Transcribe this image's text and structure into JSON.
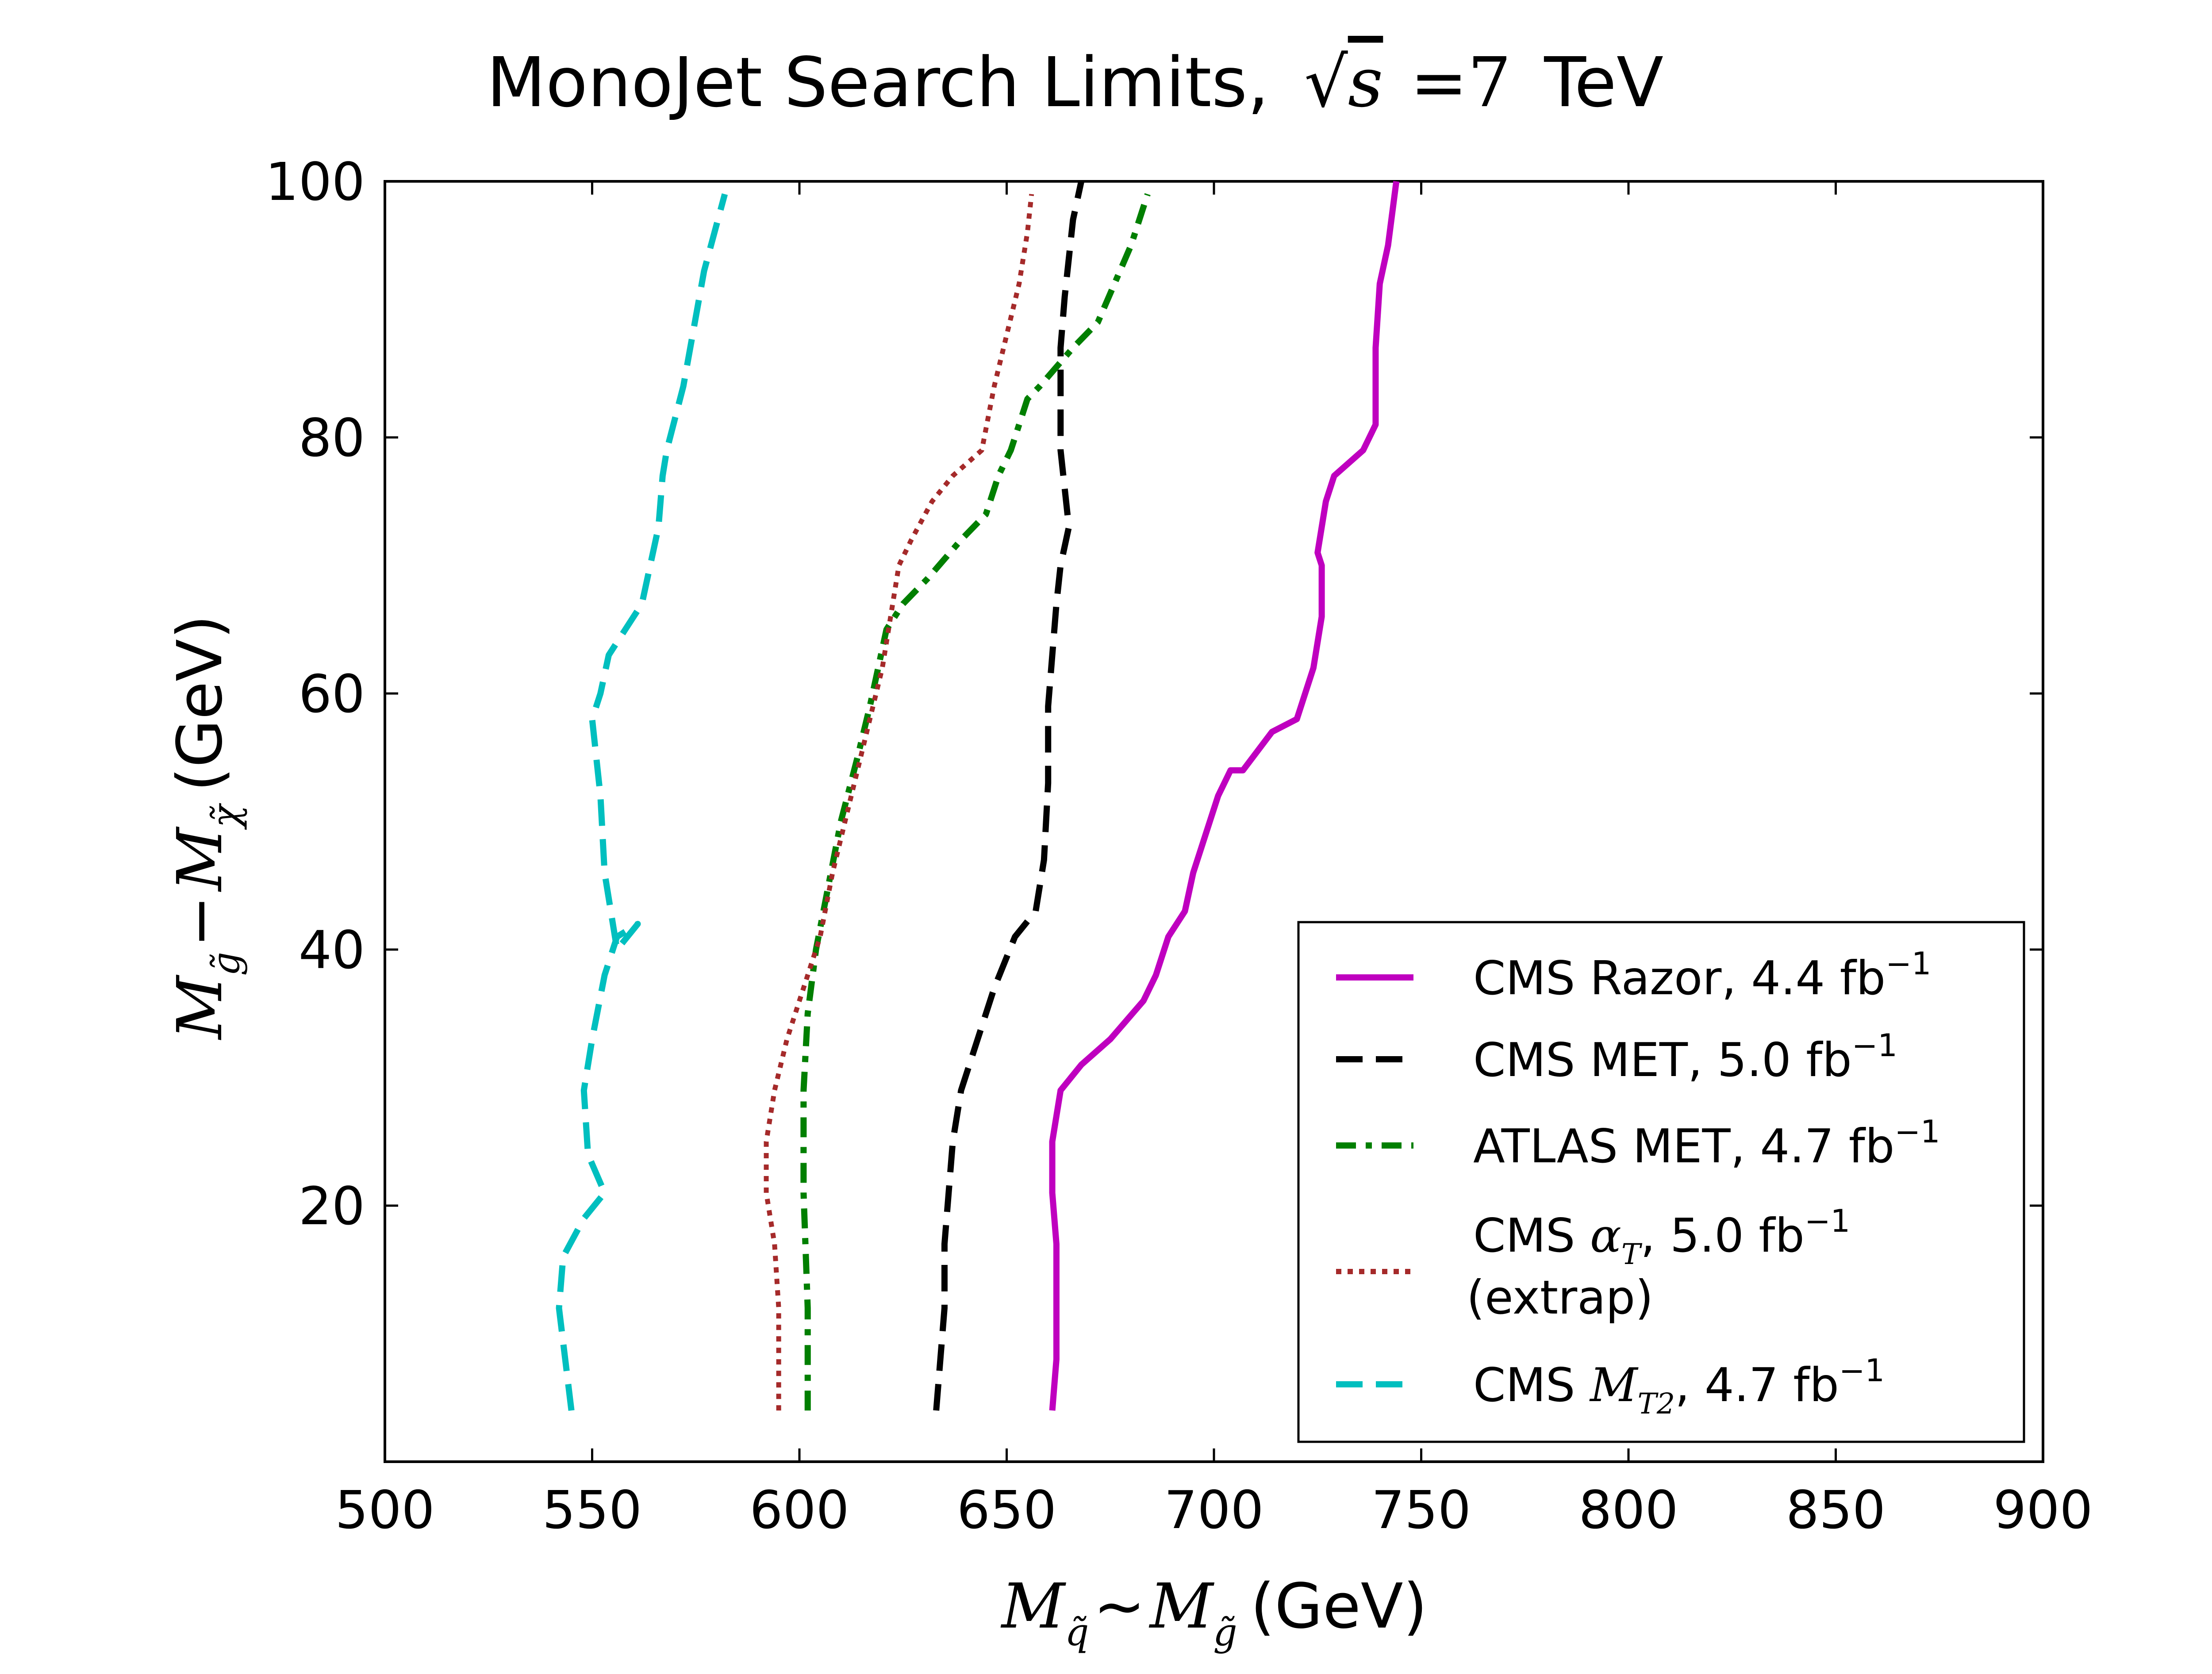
{
  "chart_data": {
    "type": "line",
    "title": "MonoJet Search Limits, √s = 7 TeV",
    "title_parts": {
      "prefix": "MonoJet Search Limits,",
      "sqrt_var": "s",
      "eq": "=",
      "energy": "7",
      "unit": "TeV"
    },
    "xlabel": "M_q̃ ~ M_g̃ (GeV)",
    "ylabel": "M_g̃ − M_χ̃ (GeV)",
    "xlabel_parts": {
      "m1": "M",
      "s1": "q̃",
      "op": "∼",
      "m2": "M",
      "s2": "g̃",
      "unit": "(GeV)"
    },
    "ylabel_parts": {
      "m1": "M",
      "s1": "g̃",
      "op": "−",
      "m2": "M",
      "s2": "χ̃",
      "unit": "(GeV)"
    },
    "xlim": [
      500,
      900
    ],
    "ylim": [
      0,
      100
    ],
    "xticks": [
      500,
      550,
      600,
      650,
      700,
      750,
      800,
      850,
      900
    ],
    "yticks": [
      20,
      40,
      60,
      80,
      100
    ],
    "legend_position": "lower-right",
    "series": [
      {
        "name": "CMS Razor, 4.4 fb⁻¹",
        "color": "#bf00bf",
        "style": "solid",
        "x": [
          661,
          662,
          662,
          661,
          661,
          663,
          668,
          675,
          683,
          686,
          689,
          693,
          695,
          698,
          701,
          704,
          707,
          714,
          720,
          724,
          726,
          726,
          725,
          727,
          729,
          736,
          739,
          739,
          739,
          740,
          742,
          744
        ],
        "y": [
          4,
          8,
          17,
          21,
          25,
          29,
          31,
          33,
          36,
          38,
          41,
          43,
          46,
          49,
          52,
          54,
          54,
          57,
          58,
          62,
          66,
          70,
          71,
          75,
          77,
          79,
          81,
          83,
          87,
          92,
          95,
          100
        ]
      },
      {
        "name": "CMS MET, 5.0 fb⁻¹",
        "color": "#000000",
        "style": "dashed",
        "x": [
          633,
          635,
          635,
          636,
          637,
          639,
          643,
          647,
          652,
          657,
          659,
          660,
          660,
          661,
          662,
          663,
          665,
          664,
          663,
          663,
          663,
          664,
          665,
          666,
          668
        ],
        "y": [
          4,
          12,
          17,
          21,
          25,
          29,
          33,
          37,
          41,
          43,
          47,
          53,
          59,
          63,
          67,
          70,
          73,
          76,
          79,
          83,
          87,
          91,
          94,
          97,
          100
        ]
      },
      {
        "name": "ATLAS MET, 4.7 fb⁻¹",
        "color": "#007f00",
        "style": "dashdot",
        "x": [
          602,
          602,
          601,
          601,
          602,
          604,
          607,
          610,
          614,
          617,
          619,
          621,
          625,
          631,
          639,
          645,
          648,
          651,
          655,
          658,
          666,
          672,
          676,
          680,
          684
        ],
        "y": [
          4,
          12,
          21,
          29,
          35,
          40,
          45,
          50,
          55,
          59,
          62,
          65,
          67,
          69,
          72,
          74,
          77,
          79,
          83,
          84,
          87,
          89,
          92,
          95,
          99
        ]
      },
      {
        "name": "CMS αT, 5.0 fb⁻¹ (extrap)",
        "color": "#a52a2a",
        "style": "dotted",
        "x": [
          595,
          595,
          594,
          592,
          592,
          594,
          597,
          601,
          605,
          608,
          611,
          614,
          617,
          620,
          622,
          624,
          627,
          632,
          637,
          644,
          647,
          650,
          653,
          655,
          656
        ],
        "y": [
          4,
          12,
          17,
          21,
          25,
          29,
          33,
          37,
          41,
          46,
          50,
          54,
          58,
          62,
          66,
          70,
          72,
          75,
          77,
          79,
          84,
          88,
          92,
          96,
          99
        ]
      },
      {
        "name": "CMS MT2, 4.7 fb⁻¹",
        "color": "#00bfbf",
        "style": "dashed",
        "x": [
          545,
          542,
          543,
          548,
          553,
          549,
          548,
          550,
          553,
          556,
          561,
          556,
          553,
          552,
          550,
          552,
          554,
          558,
          562,
          564,
          566,
          567,
          568,
          572,
          577,
          582
        ],
        "y": [
          4,
          12,
          16,
          19,
          21,
          24,
          29,
          33,
          38,
          41,
          42,
          40,
          46,
          52,
          58,
          60,
          63,
          65,
          67,
          70,
          73,
          77,
          79,
          84,
          93,
          99
        ]
      }
    ],
    "legend": [
      {
        "label": "CMS Razor, 4.4 fb",
        "sup": "−1"
      },
      {
        "label": "CMS MET, 5.0 fb",
        "sup": "−1"
      },
      {
        "label": "ATLAS MET, 4.7 fb",
        "sup": "−1"
      },
      {
        "label": "CMS ",
        "math": "α",
        "math_sub": "T",
        "after": ", 5.0 fb",
        "sup": "−1",
        "line2": "(extrap)"
      },
      {
        "label": "CMS ",
        "math": "M",
        "math_sub": "T2",
        "after": ", 4.7 fb",
        "sup": "−1"
      }
    ]
  }
}
